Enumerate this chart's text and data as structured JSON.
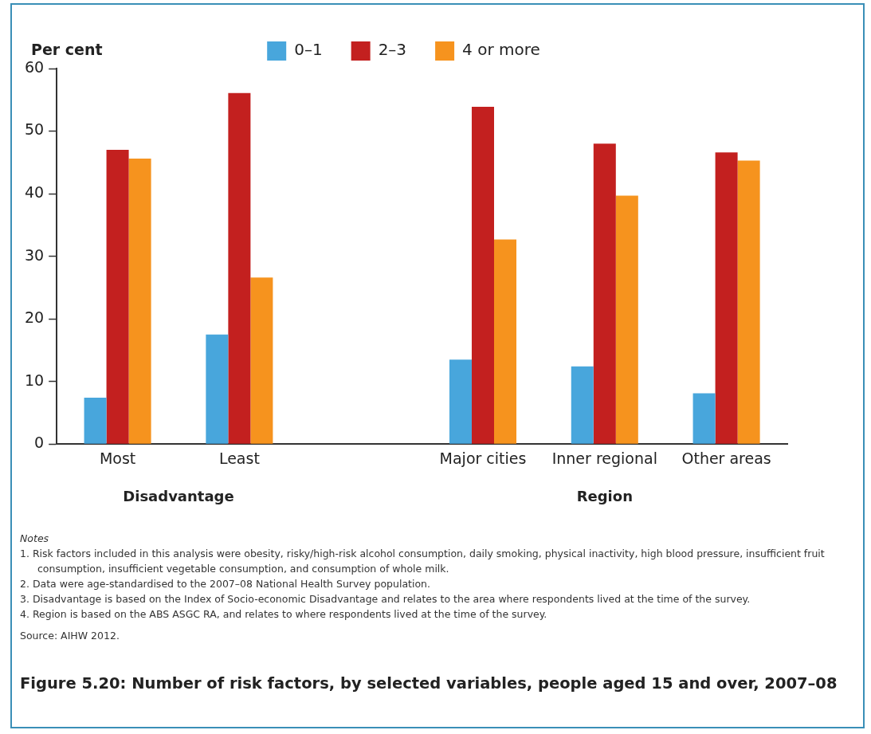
{
  "chart_data": {
    "type": "bar",
    "title": "Figure 5.20: Number of risk factors, by selected variables, people aged 15 and over, 2007–08",
    "ylabel": "Per cent",
    "categories": [
      "Most",
      "Least",
      null,
      "Major cities",
      "Inner regional",
      "Other areas"
    ],
    "series": [
      {
        "name": "0–1",
        "color": "#48a6dc",
        "values": [
          7.4,
          17.5,
          null,
          13.5,
          12.4,
          8.1
        ]
      },
      {
        "name": "2–3",
        "color": "#c3201f",
        "values": [
          47.0,
          56.1,
          null,
          53.9,
          48.0,
          46.6
        ]
      },
      {
        "name": "4 or more",
        "color": "#f6931e",
        "values": [
          45.6,
          26.6,
          null,
          32.7,
          39.7,
          45.3
        ]
      }
    ],
    "ylim": [
      0,
      60
    ],
    "yticks": [
      0,
      10,
      20,
      30,
      40,
      50,
      60
    ],
    "grid": false,
    "legend": "top",
    "annotations": [
      "Disadvantage",
      "Region",
      "Notes",
      "1. Risk factors included in this analysis were obesity, risky/high-risk alcohol consumption, daily smoking, physical inactivity, high blood pressure, insufficient fruit consumption, insufficient vegetable consumption, and consumption of whole milk.",
      "2. Data were age-standardised to the 2007–08 National Health Survey population.",
      "3. Disadvantage is based on the Index of Socio-economic Disadvantage and relates to the area where respondents lived at the time of the survey.",
      "4. Region is based on the ABS ASGC RA, and relates to where respondents lived at the time of the survey.",
      "Source: AIHW 2012."
    ]
  }
}
